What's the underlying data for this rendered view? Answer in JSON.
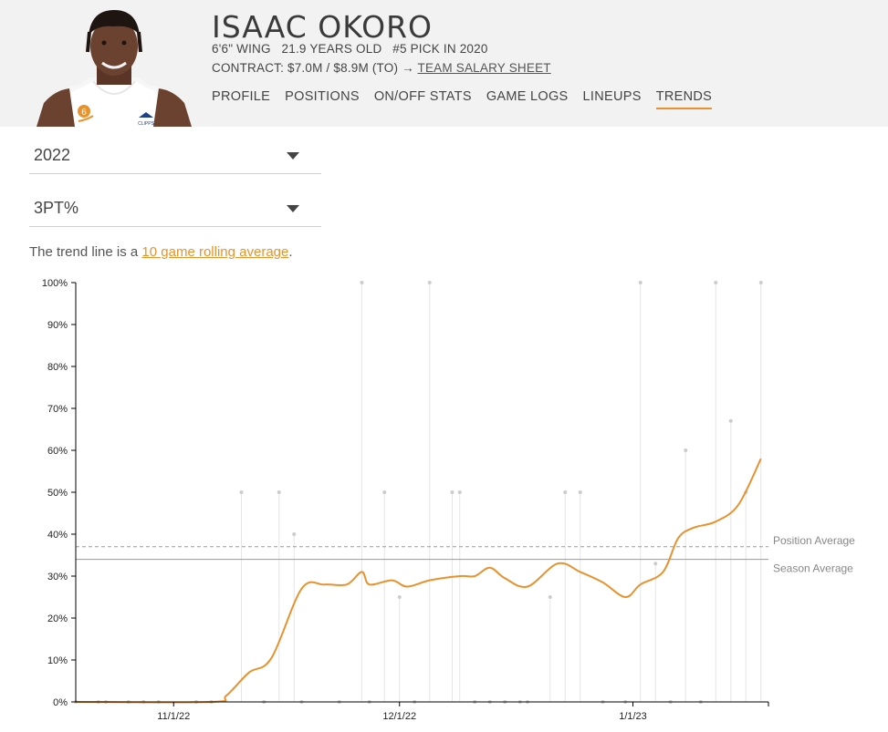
{
  "player": {
    "name": "ISAAC OKORO",
    "bio": "6'6\" WING   21.9 YEARS OLD   #5 PICK IN 2020",
    "contract_prefix": "CONTRACT: $7.0M / $8.9M (TO) →",
    "contract_link": "TEAM SALARY SHEET",
    "jersey_number": "6",
    "team_logo_text": "CLIPPS"
  },
  "nav": {
    "tabs": [
      {
        "label": "PROFILE",
        "active": false
      },
      {
        "label": "POSITIONS",
        "active": false
      },
      {
        "label": "ON/OFF STATS",
        "active": false
      },
      {
        "label": "GAME LOGS",
        "active": false
      },
      {
        "label": "LINEUPS",
        "active": false
      },
      {
        "label": "TRENDS",
        "active": true
      }
    ]
  },
  "filters": {
    "season": "2022",
    "stat": "3PT%"
  },
  "note": {
    "prefix": "The trend line is a ",
    "link": "10 game rolling average",
    "suffix": "."
  },
  "colors": {
    "accent": "#e8922e",
    "game_line": "#e6e6e6",
    "game_dot": "#cccccc",
    "reference": "#999999"
  },
  "chart_data": {
    "type": "line",
    "y_ticks": [
      "0%",
      "10%",
      "20%",
      "30%",
      "40%",
      "50%",
      "60%",
      "70%",
      "80%",
      "90%",
      "100%"
    ],
    "ylim": [
      0,
      100
    ],
    "x_ticks": [
      {
        "date": "2022-11-01",
        "label": "11/1/22"
      },
      {
        "date": "2022-12-01",
        "label": "12/1/22"
      },
      {
        "date": "2023-01-01",
        "label": "1/1/23"
      }
    ],
    "xlim": [
      "2022-10-19",
      "2023-01-19"
    ],
    "games": [
      {
        "date": "2022-10-19",
        "pct": 0
      },
      {
        "date": "2022-10-22",
        "pct": 0
      },
      {
        "date": "2022-10-23",
        "pct": 0
      },
      {
        "date": "2022-10-26",
        "pct": 0
      },
      {
        "date": "2022-10-28",
        "pct": 0
      },
      {
        "date": "2022-10-30",
        "pct": 0
      },
      {
        "date": "2022-11-04",
        "pct": 0
      },
      {
        "date": "2022-11-06",
        "pct": 0
      },
      {
        "date": "2022-11-10",
        "pct": 50
      },
      {
        "date": "2022-11-13",
        "pct": 0
      },
      {
        "date": "2022-11-15",
        "pct": 50
      },
      {
        "date": "2022-11-17",
        "pct": 40
      },
      {
        "date": "2022-11-18",
        "pct": 0
      },
      {
        "date": "2022-11-23",
        "pct": 0
      },
      {
        "date": "2022-11-26",
        "pct": 100
      },
      {
        "date": "2022-11-27",
        "pct": 0
      },
      {
        "date": "2022-11-29",
        "pct": 50
      },
      {
        "date": "2022-12-01",
        "pct": 25
      },
      {
        "date": "2022-12-03",
        "pct": 0
      },
      {
        "date": "2022-12-05",
        "pct": 100
      },
      {
        "date": "2022-12-08",
        "pct": 50
      },
      {
        "date": "2022-12-09",
        "pct": 50
      },
      {
        "date": "2022-12-11",
        "pct": 0
      },
      {
        "date": "2022-12-13",
        "pct": 0
      },
      {
        "date": "2022-12-15",
        "pct": 0
      },
      {
        "date": "2022-12-17",
        "pct": 0
      },
      {
        "date": "2022-12-18",
        "pct": 0
      },
      {
        "date": "2022-12-21",
        "pct": 25
      },
      {
        "date": "2022-12-23",
        "pct": 50
      },
      {
        "date": "2022-12-25",
        "pct": 50
      },
      {
        "date": "2022-12-28",
        "pct": 0
      },
      {
        "date": "2022-12-31",
        "pct": 0
      },
      {
        "date": "2023-01-02",
        "pct": 100
      },
      {
        "date": "2023-01-04",
        "pct": 33
      },
      {
        "date": "2023-01-06",
        "pct": 0
      },
      {
        "date": "2023-01-08",
        "pct": 60
      },
      {
        "date": "2023-01-10",
        "pct": 0
      },
      {
        "date": "2023-01-12",
        "pct": 100
      },
      {
        "date": "2023-01-14",
        "pct": 67
      },
      {
        "date": "2023-01-16",
        "pct": 50
      },
      {
        "date": "2023-01-18",
        "pct": 100
      }
    ],
    "trend": [
      {
        "date": "2022-10-19",
        "pct": 0
      },
      {
        "date": "2022-11-06",
        "pct": 0
      },
      {
        "date": "2022-11-08",
        "pct": 1.5
      },
      {
        "date": "2022-11-11",
        "pct": 7
      },
      {
        "date": "2022-11-14",
        "pct": 10.5
      },
      {
        "date": "2022-11-18",
        "pct": 27
      },
      {
        "date": "2022-11-21",
        "pct": 28
      },
      {
        "date": "2022-11-24",
        "pct": 28
      },
      {
        "date": "2022-11-26",
        "pct": 31
      },
      {
        "date": "2022-11-27",
        "pct": 28
      },
      {
        "date": "2022-11-30",
        "pct": 29
      },
      {
        "date": "2022-12-02",
        "pct": 27.5
      },
      {
        "date": "2022-12-05",
        "pct": 29
      },
      {
        "date": "2022-12-09",
        "pct": 30
      },
      {
        "date": "2022-12-11",
        "pct": 30
      },
      {
        "date": "2022-12-13",
        "pct": 32
      },
      {
        "date": "2022-12-15",
        "pct": 29.5
      },
      {
        "date": "2022-12-18",
        "pct": 27.5
      },
      {
        "date": "2022-12-22",
        "pct": 33
      },
      {
        "date": "2022-12-25",
        "pct": 31
      },
      {
        "date": "2022-12-28",
        "pct": 28.5
      },
      {
        "date": "2022-12-31",
        "pct": 25
      },
      {
        "date": "2023-01-02",
        "pct": 28
      },
      {
        "date": "2023-01-05",
        "pct": 31
      },
      {
        "date": "2023-01-07",
        "pct": 39
      },
      {
        "date": "2023-01-09",
        "pct": 41.5
      },
      {
        "date": "2023-01-12",
        "pct": 43
      },
      {
        "date": "2023-01-15",
        "pct": 47
      },
      {
        "date": "2023-01-18",
        "pct": 58
      }
    ],
    "reference_lines": [
      {
        "label": "Position Average",
        "value": 37,
        "style": "dashed"
      },
      {
        "label": "Season Average",
        "value": 34,
        "style": "solid"
      }
    ]
  }
}
